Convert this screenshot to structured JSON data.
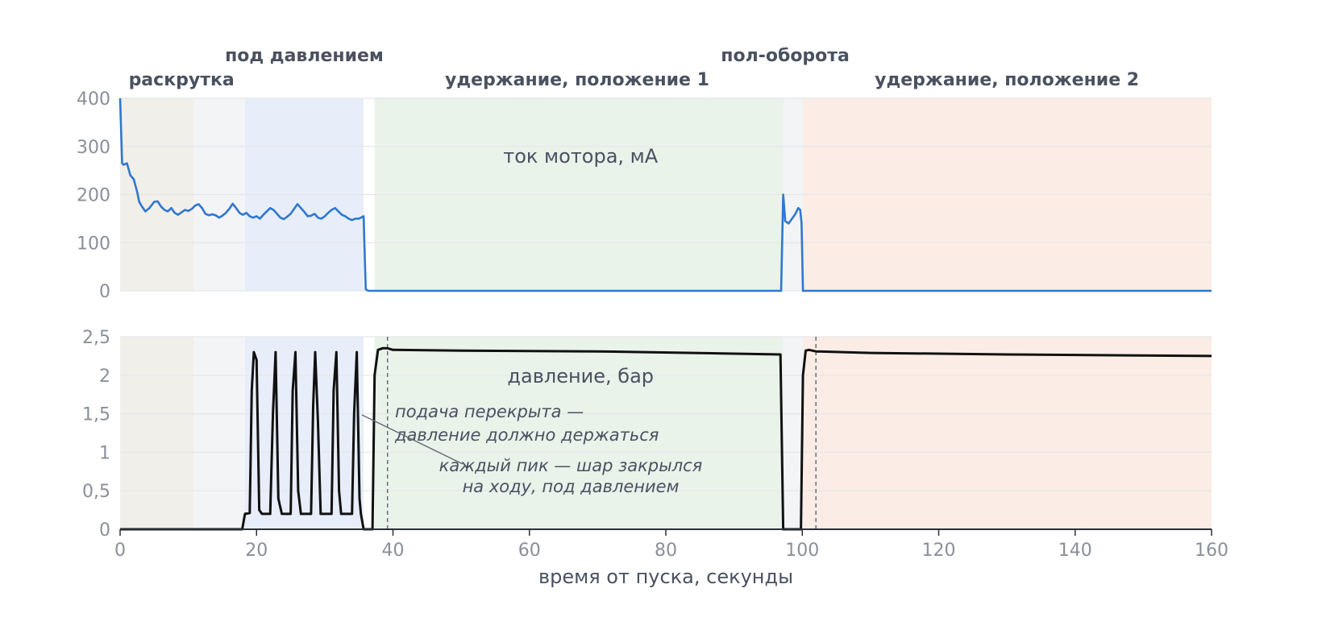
{
  "chart_data": {
    "type": "line",
    "xlabel": "время от пуска, секунды",
    "xlim": [
      0,
      160
    ],
    "x_ticks": [
      "0",
      "20",
      "40",
      "60",
      "80",
      "100",
      "120",
      "140",
      "160"
    ],
    "phases": [
      {
        "name": "раскрутка",
        "start": 0,
        "end": 10.8,
        "color": "#f1efe9"
      },
      {
        "name": "",
        "start": 10.8,
        "end": 18.3,
        "color": "#f3f4f6"
      },
      {
        "name": "под давлением",
        "start": 18.3,
        "end": 35.7,
        "color": "#e7eef9"
      },
      {
        "name": "",
        "start": 35.7,
        "end": 37.3,
        "color": "#ffffff"
      },
      {
        "name": "удержание, положение 1",
        "start": 37.3,
        "end": 97.2,
        "color": "#e9f3ea"
      },
      {
        "name": "пол-оборота",
        "start": 97.2,
        "end": 100.1,
        "color": "#f3f4f6"
      },
      {
        "name": "удержание, положение 2",
        "start": 100.1,
        "end": 160,
        "color": "#fbede5"
      }
    ],
    "panels": [
      {
        "title": "ток мотора, мА",
        "ylim": [
          0,
          400
        ],
        "y_ticks": [
          "0",
          "100",
          "200",
          "300",
          "400"
        ],
        "color": "#2f77d0",
        "x": [
          0,
          0.3,
          0.5,
          1,
          1.5,
          2,
          2.5,
          2.8,
          3.2,
          3.7,
          4.3,
          5,
          5.5,
          6,
          6.5,
          7,
          7.5,
          8,
          8.5,
          9,
          9.5,
          10,
          10.5,
          11,
          11.5,
          12,
          12.5,
          13,
          13.5,
          14,
          14.5,
          15,
          15.5,
          16,
          16.5,
          17,
          17.5,
          18,
          18.5,
          19,
          19.5,
          20,
          20.5,
          21,
          21.5,
          22,
          22.5,
          23,
          23.5,
          24,
          24.5,
          25,
          25.5,
          26,
          26.5,
          27,
          27.5,
          28,
          28.5,
          29,
          29.5,
          30,
          30.5,
          31,
          31.5,
          32,
          32.5,
          33,
          33.5,
          34,
          34.5,
          35,
          35.3,
          35.7,
          36,
          36.4,
          37.3,
          96.9,
          97.2,
          97.5,
          98,
          98.5,
          99,
          99.4,
          99.7,
          99.9,
          100.1,
          160
        ],
        "y": [
          400,
          265,
          262,
          265,
          240,
          232,
          205,
          185,
          175,
          165,
          172,
          185,
          186,
          175,
          168,
          165,
          172,
          162,
          158,
          163,
          168,
          166,
          170,
          177,
          180,
          172,
          160,
          157,
          159,
          157,
          152,
          156,
          162,
          170,
          181,
          172,
          162,
          158,
          162,
          155,
          152,
          155,
          150,
          158,
          165,
          172,
          168,
          160,
          152,
          149,
          154,
          160,
          170,
          180,
          172,
          164,
          155,
          156,
          160,
          152,
          150,
          155,
          162,
          168,
          172,
          165,
          158,
          155,
          150,
          147,
          150,
          150,
          152,
          155,
          3,
          0,
          0,
          0,
          200,
          145,
          140,
          150,
          160,
          172,
          168,
          140,
          0,
          0
        ]
      },
      {
        "title": "давление, бар",
        "ylim": [
          0,
          2.5
        ],
        "y_ticks": [
          "0",
          "0,5",
          "1",
          "1,5",
          "2",
          "2,5"
        ],
        "color": "#111111",
        "x": [
          0,
          17.9,
          18.3,
          19,
          19.3,
          19.6,
          20,
          20.4,
          20.8,
          22,
          22.4,
          22.8,
          23.2,
          23.7,
          25,
          25.3,
          25.7,
          26.1,
          26.5,
          28,
          28.3,
          28.6,
          29,
          29.4,
          31,
          31.3,
          31.7,
          32.1,
          32.4,
          34,
          34.3,
          34.7,
          35.1,
          35.3,
          35.7,
          37,
          37.3,
          37.8,
          38.5,
          39.2,
          40,
          50,
          70,
          90,
          96.8,
          97.2,
          99.8,
          100.1,
          100.5,
          101,
          102,
          110,
          130,
          160
        ],
        "y": [
          0,
          0,
          0.2,
          0.21,
          1.8,
          2.3,
          2.2,
          0.25,
          0.2,
          0.2,
          1.5,
          2.3,
          0.4,
          0.2,
          0.2,
          1.8,
          2.3,
          0.5,
          0.2,
          0.2,
          1.6,
          2.3,
          1.4,
          0.2,
          0.2,
          1.8,
          2.3,
          0.5,
          0.2,
          0.2,
          1.5,
          2.3,
          0.4,
          0.2,
          0,
          0,
          2.0,
          2.33,
          2.35,
          2.35,
          2.33,
          2.32,
          2.31,
          2.28,
          2.27,
          0,
          0,
          2.0,
          2.32,
          2.33,
          2.31,
          2.29,
          2.27,
          2.25
        ]
      }
    ],
    "markers": [
      39.2,
      102
    ],
    "annotations": [
      {
        "lines": [
          "подача перекрыта —",
          "давление должно держаться"
        ]
      },
      {
        "lines": [
          "каждый пик — шар закрылся",
          "на ходу, под давлением"
        ]
      }
    ]
  }
}
